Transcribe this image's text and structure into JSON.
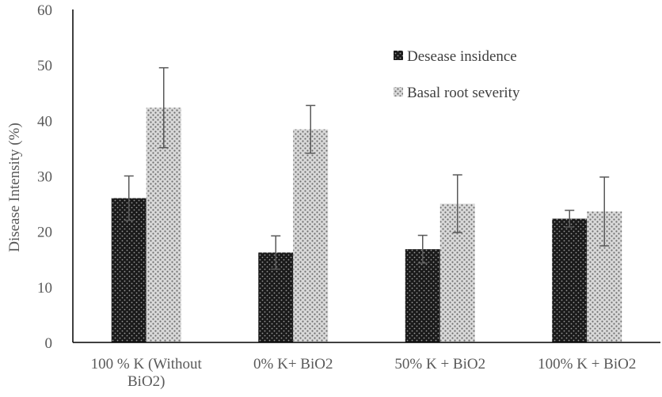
{
  "chart_data": {
    "type": "bar",
    "title": "",
    "xlabel": "",
    "ylabel": "Disease Intensity (%)",
    "ylim": [
      0,
      60
    ],
    "yticks": [
      "0",
      "10",
      "20",
      "30",
      "40",
      "50",
      "60"
    ],
    "categories": [
      [
        "100 % K (Without",
        "BiO2)"
      ],
      [
        "0% K+ BiO2"
      ],
      [
        "50% K + BiO2"
      ],
      [
        "100% K + BiO2"
      ]
    ],
    "series": [
      {
        "name": "Desease insidence",
        "values": [
          26.0,
          16.2,
          16.8,
          22.3
        ],
        "errors": [
          4.0,
          3.0,
          2.5,
          1.5
        ],
        "color": "#262626",
        "pattern": "dark-dots"
      },
      {
        "name": "Basal root severity",
        "values": [
          42.3,
          38.4,
          25.0,
          23.6
        ],
        "errors": [
          7.2,
          4.3,
          5.2,
          6.2
        ],
        "color": "#8c8c8c",
        "pattern": "light-dots"
      }
    ],
    "grid": false,
    "legend_position": "top-right",
    "error_bar_color": "#595959"
  }
}
